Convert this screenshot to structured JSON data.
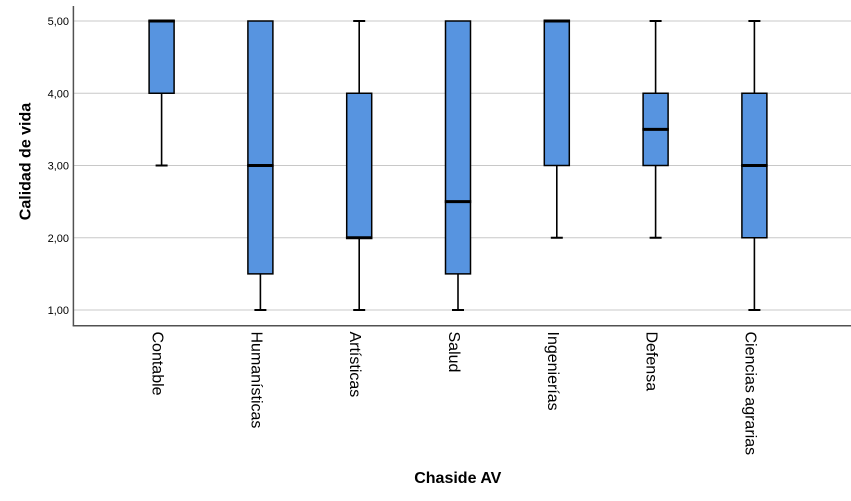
{
  "chart_data": {
    "type": "boxplot",
    "title": "",
    "xlabel": "Chaside AV",
    "ylabel": "Calidad de vida",
    "categories": [
      "Contable",
      "Humanísticas",
      "Artísticas",
      "Salud",
      "Ingenierías",
      "Defensa",
      "Ciencias agrarias"
    ],
    "y_ticks": [
      {
        "value": 1,
        "label": "1,00"
      },
      {
        "value": 2,
        "label": "2,00"
      },
      {
        "value": 3,
        "label": "3,00"
      },
      {
        "value": 4,
        "label": "4,00"
      },
      {
        "value": 5,
        "label": "5,00"
      }
    ],
    "ylim": [
      1,
      5
    ],
    "grid": true,
    "legend": false,
    "boxes": [
      {
        "category": "Contable",
        "whisker_low": 3.0,
        "q1": 4.0,
        "median": 5.0,
        "q3": 5.0,
        "whisker_high": 5.0
      },
      {
        "category": "Humanísticas",
        "whisker_low": 1.0,
        "q1": 1.5,
        "median": 3.0,
        "q3": 5.0,
        "whisker_high": 5.0
      },
      {
        "category": "Artísticas",
        "whisker_low": 1.0,
        "q1": 2.0,
        "median": 2.0,
        "q3": 4.0,
        "whisker_high": 5.0
      },
      {
        "category": "Salud",
        "whisker_low": 1.0,
        "q1": 1.5,
        "median": 2.5,
        "q3": 5.0,
        "whisker_high": 5.0
      },
      {
        "category": "Ingenierías",
        "whisker_low": 2.0,
        "q1": 3.0,
        "median": 5.0,
        "q3": 5.0,
        "whisker_high": 5.0
      },
      {
        "category": "Defensa",
        "whisker_low": 2.0,
        "q1": 3.0,
        "median": 3.5,
        "q3": 4.0,
        "whisker_high": 5.0
      },
      {
        "category": "Ciencias agrarias",
        "whisker_low": 1.0,
        "q1": 2.0,
        "median": 3.0,
        "q3": 4.0,
        "whisker_high": 5.0
      }
    ],
    "colors": {
      "box_fill": "#5794e0",
      "box_border": "#000000",
      "median": "#000000",
      "whisker": "#000000",
      "gridline": "#c8c8c8",
      "axis": "#515151",
      "text": "#000000",
      "background": "#ffffff"
    }
  }
}
